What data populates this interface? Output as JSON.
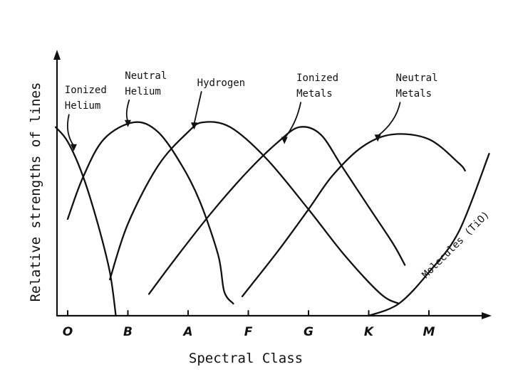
{
  "colors": {
    "ink": "#111111",
    "background": "#ffffff"
  },
  "chart_data": {
    "type": "line",
    "title": "",
    "xlabel": "Spectral Class",
    "ylabel": "Relative strengths of lines",
    "categories": [
      "O",
      "B",
      "A",
      "F",
      "G",
      "K",
      "M"
    ],
    "x_range": [
      -0.2,
      7.0
    ],
    "y_range": [
      0,
      100
    ],
    "grid": false,
    "legend": "none (series labeled directly with arrows)",
    "series": [
      {
        "name": "Ionized Helium",
        "label_lines": [
          "Ionized",
          "Helium"
        ],
        "points": [
          [
            -0.2,
            78
          ],
          [
            0.0,
            72
          ],
          [
            0.25,
            58
          ],
          [
            0.5,
            38
          ],
          [
            0.7,
            18
          ],
          [
            0.8,
            0
          ]
        ]
      },
      {
        "name": "Neutral Helium",
        "label_lines": [
          "Neutral",
          "Helium"
        ],
        "points": [
          [
            0.0,
            40
          ],
          [
            0.25,
            57
          ],
          [
            0.6,
            73
          ],
          [
            1.1,
            80
          ],
          [
            1.5,
            76
          ],
          [
            1.9,
            62
          ],
          [
            2.2,
            47
          ],
          [
            2.5,
            25
          ],
          [
            2.6,
            10
          ],
          [
            2.75,
            5
          ]
        ]
      },
      {
        "name": "Hydrogen",
        "label_lines": [
          "Hydrogen"
        ],
        "points": [
          [
            0.7,
            15
          ],
          [
            1.0,
            38
          ],
          [
            1.5,
            62
          ],
          [
            2.0,
            76
          ],
          [
            2.25,
            80
          ],
          [
            2.7,
            78
          ],
          [
            3.3,
            65
          ],
          [
            4.0,
            44
          ],
          [
            4.6,
            25
          ],
          [
            5.2,
            9
          ],
          [
            5.5,
            5
          ]
        ]
      },
      {
        "name": "Ionized Metals",
        "label_lines": [
          "Ionized",
          "Metals"
        ],
        "points": [
          [
            1.35,
            9
          ],
          [
            1.8,
            24
          ],
          [
            2.4,
            43
          ],
          [
            3.0,
            60
          ],
          [
            3.5,
            72
          ],
          [
            3.85,
            78
          ],
          [
            4.2,
            75
          ],
          [
            4.55,
            62
          ],
          [
            5.0,
            45
          ],
          [
            5.4,
            30
          ],
          [
            5.6,
            21
          ]
        ]
      },
      {
        "name": "Neutral Metals",
        "label_lines": [
          "Neutral",
          "Metals"
        ],
        "points": [
          [
            2.9,
            8
          ],
          [
            3.5,
            27
          ],
          [
            4.0,
            44
          ],
          [
            4.4,
            58
          ],
          [
            4.9,
            70
          ],
          [
            5.4,
            75
          ],
          [
            6.0,
            73
          ],
          [
            6.5,
            63
          ],
          [
            6.6,
            60
          ]
        ]
      },
      {
        "name": "Molecules (TiO)",
        "label_lines": [
          "Molecules (TiO)"
        ],
        "points": [
          [
            5.0,
            0
          ],
          [
            5.5,
            5
          ],
          [
            6.0,
            18
          ],
          [
            6.5,
            35
          ],
          [
            7.0,
            67
          ]
        ]
      }
    ],
    "label_anchors": [
      {
        "x": -0.05,
        "y": 92,
        "arrow_to": [
          0.1,
          68
        ]
      },
      {
        "x": 0.95,
        "y": 98,
        "arrow_to": [
          1.0,
          78
        ]
      },
      {
        "x": 2.15,
        "y": 95,
        "arrow_to": [
          2.1,
          77
        ]
      },
      {
        "x": 3.8,
        "y": 97,
        "arrow_to": [
          3.6,
          71
        ]
      },
      {
        "x": 5.45,
        "y": 97,
        "arrow_to": [
          5.15,
          72
        ]
      }
    ]
  }
}
